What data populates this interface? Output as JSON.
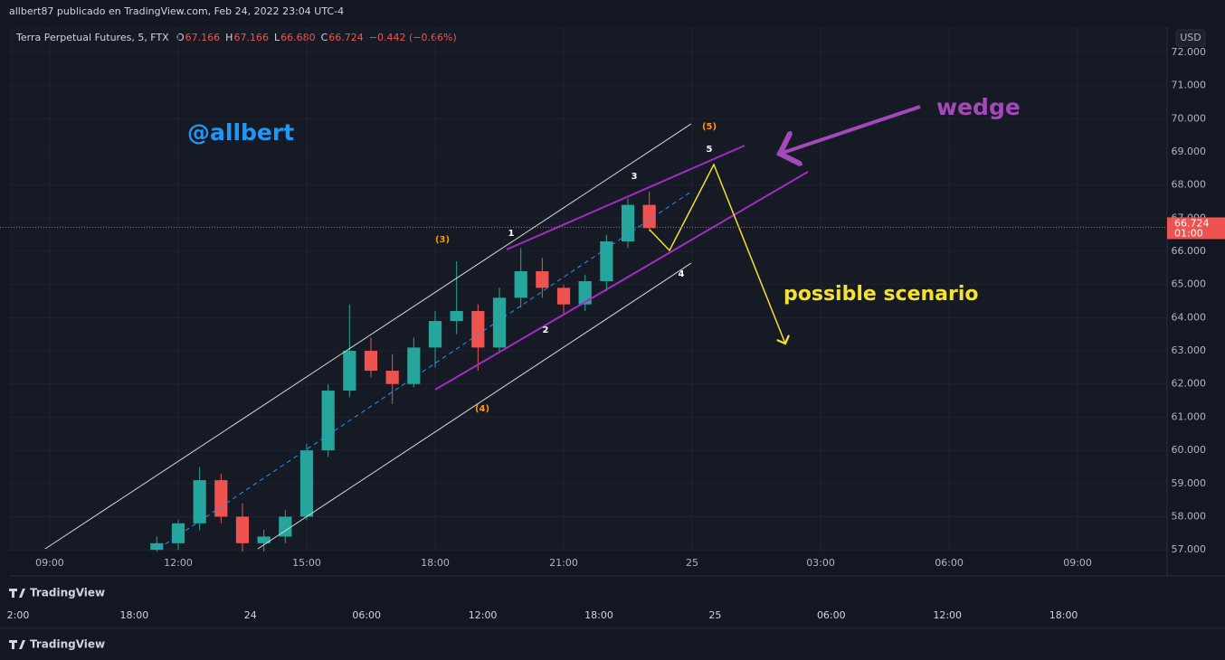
{
  "header": {
    "title": "allbert87 publicado en TradingView.com, Feb 24, 2022 23:04 UTC-4"
  },
  "chart_data": {
    "type": "candlestick",
    "symbol": "Terra Perpetual Futures, 5, FTX",
    "ohlc_legend": [
      {
        "key": "O",
        "text": "67.166"
      },
      {
        "key": "H",
        "text": "67.166"
      },
      {
        "key": "L",
        "text": "66.680"
      },
      {
        "key": "C",
        "text": "66.724"
      }
    ],
    "change": "−0.442 (−0.66%)",
    "currency": "USD",
    "x": [
      11.5,
      12,
      12.5,
      13,
      13.5,
      14,
      14.5,
      15,
      15.5,
      16,
      16.5,
      17,
      17.5,
      18,
      18.5,
      19,
      19.5,
      20,
      20.5,
      21,
      21.5,
      22,
      22.5,
      23
    ],
    "open": [
      57.0,
      57.2,
      57.8,
      59.1,
      58.0,
      57.2,
      57.4,
      58.0,
      60.0,
      61.8,
      63.0,
      62.4,
      62.0,
      63.1,
      63.9,
      64.2,
      63.1,
      64.6,
      65.4,
      64.9,
      64.4,
      65.1,
      66.3,
      67.4
    ],
    "high": [
      57.4,
      57.9,
      59.5,
      59.3,
      58.4,
      57.6,
      58.2,
      60.2,
      62.0,
      64.4,
      63.4,
      62.9,
      63.4,
      64.2,
      65.7,
      64.4,
      64.9,
      66.1,
      65.8,
      65.0,
      65.3,
      66.5,
      67.6,
      67.8
    ],
    "low": [
      56.9,
      57.0,
      57.6,
      57.8,
      56.9,
      56.9,
      57.2,
      57.9,
      59.8,
      61.6,
      62.2,
      61.4,
      61.9,
      62.5,
      63.5,
      62.4,
      63.0,
      64.3,
      64.6,
      64.1,
      64.2,
      64.8,
      66.1,
      66.6
    ],
    "close": [
      57.2,
      57.8,
      59.1,
      58.0,
      57.2,
      57.4,
      58.0,
      60.0,
      61.8,
      63.0,
      62.4,
      62.0,
      63.1,
      63.9,
      64.2,
      63.1,
      64.6,
      65.4,
      64.9,
      64.4,
      65.1,
      66.3,
      67.4,
      66.7
    ],
    "up_color": "#26a69a",
    "down_color": "#ef5350",
    "last_price": 66.724,
    "last_price_time": "01:00",
    "xlim": [
      8.05,
      35.09
    ],
    "xticks": [
      {
        "value": 9,
        "label": "09:00"
      },
      {
        "value": 12,
        "label": "12:00"
      },
      {
        "value": 15,
        "label": "15:00"
      },
      {
        "value": 18,
        "label": "18:00"
      },
      {
        "value": 21,
        "label": "21:00"
      },
      {
        "value": 24,
        "label": "25"
      },
      {
        "value": 27,
        "label": "03:00"
      },
      {
        "value": 30,
        "label": "06:00"
      },
      {
        "value": 33,
        "label": "09:00"
      }
    ],
    "ylim": [
      56.95,
      72.76
    ],
    "yticks": [
      {
        "value": 57,
        "label": "57.000"
      },
      {
        "value": 58,
        "label": "58.000"
      },
      {
        "value": 59,
        "label": "59.000"
      },
      {
        "value": 60,
        "label": "60.000"
      },
      {
        "value": 61,
        "label": "61.000"
      },
      {
        "value": 62,
        "label": "62.000"
      },
      {
        "value": 63,
        "label": "63.000"
      },
      {
        "value": 64,
        "label": "64.000"
      },
      {
        "value": 65,
        "label": "65.000"
      },
      {
        "value": 66,
        "label": "66.000"
      },
      {
        "value": 67,
        "label": "67.000"
      },
      {
        "value": 68,
        "label": "68.000"
      },
      {
        "value": 69,
        "label": "69.000"
      },
      {
        "value": 70,
        "label": "70.000"
      },
      {
        "value": 71,
        "label": "71.000"
      },
      {
        "value": 72,
        "label": "72.000"
      }
    ],
    "grid": true,
    "annotations": {
      "handle": "@allbert",
      "wedge": "wedge",
      "scenario": "possible scenario",
      "waves": [
        "(3)",
        "(4)",
        "(5)",
        "1",
        "2",
        "3",
        "4",
        "5"
      ]
    }
  },
  "footer": {
    "brand": "TradingView",
    "brand2": "TradingView",
    "lower_timeline": [
      "2:00",
      "18:00",
      "24",
      "06:00",
      "12:00",
      "18:00",
      "25",
      "06:00",
      "12:00",
      "18:00"
    ]
  }
}
